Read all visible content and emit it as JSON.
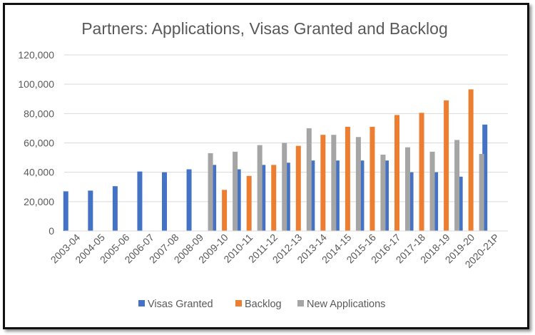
{
  "chart_data": {
    "type": "bar",
    "title": "Partners: Applications, Visas Granted and Backlog",
    "xlabel": "",
    "ylabel": "",
    "ylim": [
      0,
      120000
    ],
    "yticks": [
      "0",
      "20,000",
      "40,000",
      "60,000",
      "80,000",
      "100,000",
      "120,000"
    ],
    "grid": true,
    "legend_position": "bottom",
    "categories": [
      "2003-04",
      "2004-05",
      "2005-06",
      "2006-07",
      "2007-08",
      "2008-09",
      "2009-10",
      "2010-11",
      "2011-12",
      "2012-13",
      "2013-14",
      "2014-15",
      "2015-16",
      "2016-17",
      "2017-18",
      "2018-19",
      "2019-20",
      "2020-21P"
    ],
    "series": [
      {
        "name": "Visas Granted",
        "color": "#4472C4",
        "values": [
          27000,
          27500,
          30500,
          40500,
          40000,
          42000,
          45000,
          42000,
          45000,
          46500,
          48000,
          48000,
          48000,
          48000,
          40000,
          40000,
          37000,
          72500
        ]
      },
      {
        "name": "Backlog",
        "color": "#ED7D31",
        "values": [
          null,
          null,
          null,
          null,
          null,
          null,
          28000,
          37500,
          45000,
          58000,
          65500,
          71000,
          71000,
          79000,
          80500,
          89000,
          96500,
          null
        ]
      },
      {
        "name": "New Applications",
        "color": "#A5A5A5",
        "values": [
          null,
          null,
          null,
          null,
          null,
          53000,
          54000,
          58500,
          60000,
          70000,
          65500,
          64000,
          52000,
          57000,
          54000,
          62000,
          52500,
          null
        ]
      }
    ]
  }
}
